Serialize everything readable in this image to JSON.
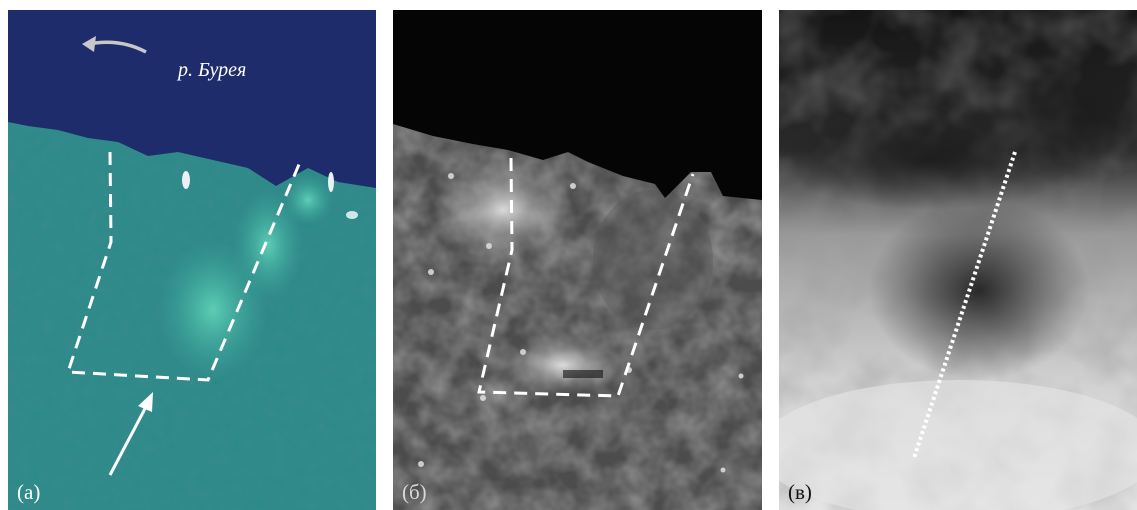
{
  "panels": [
    {
      "label": "(а)"
    },
    {
      "label": "(б)"
    },
    {
      "label": "(в)"
    }
  ],
  "river_label": "р. Бурея",
  "colors": {
    "water": "#1e2b6a",
    "forest": "#2f8c8a",
    "landslide": "#3fb6a2",
    "marker": "#ffffff"
  }
}
